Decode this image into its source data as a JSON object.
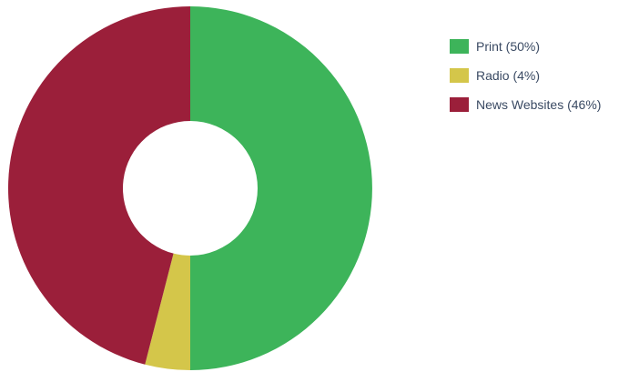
{
  "chart_data": {
    "type": "pie",
    "variant": "donut",
    "categories": [
      "Print (50%)",
      "Radio (4%)",
      "News Websites (46%)"
    ],
    "values": [
      50,
      4,
      46
    ],
    "colors": [
      "#3db45a",
      "#d4c64a",
      "#9b1f3a"
    ],
    "title": "",
    "legend_position": "right"
  }
}
